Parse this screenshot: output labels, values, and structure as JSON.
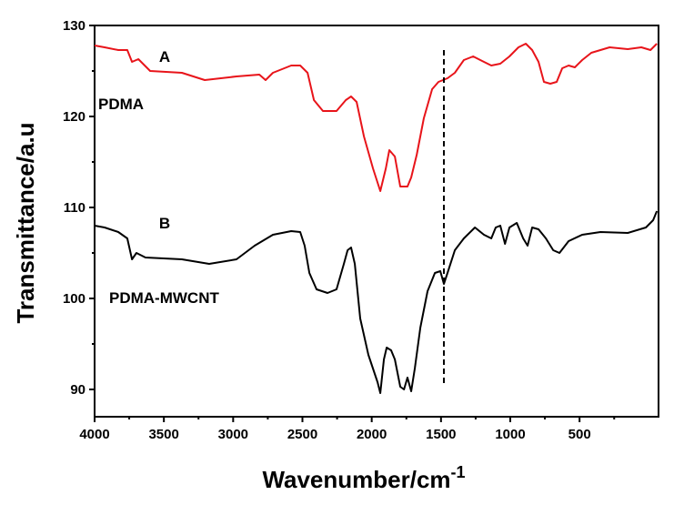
{
  "chart_data": {
    "type": "line",
    "xlabel": "Wavenumber/cm",
    "xlabel_sup": "-1",
    "ylabel": "Transmittance/a.u",
    "xlim": [
      4000,
      -70
    ],
    "ylim": [
      87,
      130
    ],
    "xticks": [
      4000,
      3500,
      3000,
      2500,
      2000,
      1500,
      1000,
      500
    ],
    "xminor": [
      3750,
      3250,
      2750,
      2250,
      1750,
      1250,
      750,
      250
    ],
    "yticks": [
      90,
      100,
      110,
      120,
      130
    ],
    "yminor": [
      95,
      105,
      115,
      125
    ],
    "annotations": [
      "A",
      "PDMA",
      "B",
      "PDMA-MWCNT"
    ],
    "vlines": [
      {
        "x": 1479,
        "ymin": 90.3,
        "ymax": 127.3
      }
    ],
    "series": [
      {
        "name": "PDMA",
        "color": "#e8141a",
        "x": [
          4000,
          3928,
          3829,
          3764,
          3730,
          3684,
          3599,
          3370,
          3205,
          2976,
          2811,
          2766,
          2713,
          2581,
          2516,
          2463,
          2417,
          2352,
          2254,
          2187,
          2149,
          2109,
          2056,
          1991,
          1938,
          1898,
          1873,
          1833,
          1794,
          1742,
          1715,
          1675,
          1624,
          1564,
          1518,
          1453,
          1400,
          1335,
          1268,
          1190,
          1137,
          1072,
          1006,
          941,
          888,
          842,
          796,
          757,
          711,
          665,
          625,
          579,
          534,
          481,
          415,
          283,
          152,
          54,
          -12,
          -58
        ],
        "values": [
          127.8,
          127.6,
          127.3,
          127.3,
          126.0,
          126.3,
          125.0,
          124.8,
          124.0,
          124.4,
          124.6,
          124.0,
          124.8,
          125.6,
          125.6,
          124.8,
          121.8,
          120.6,
          120.6,
          121.8,
          122.2,
          121.6,
          117.8,
          114.3,
          111.8,
          114.3,
          116.3,
          115.6,
          112.3,
          112.3,
          113.3,
          115.8,
          119.8,
          123.0,
          123.8,
          124.2,
          124.8,
          126.2,
          126.6,
          126.0,
          125.6,
          125.8,
          126.6,
          127.6,
          128.0,
          127.3,
          126.0,
          123.8,
          123.6,
          123.8,
          125.3,
          125.6,
          125.4,
          126.2,
          127.0,
          127.6,
          127.4,
          127.6,
          127.3,
          128.0
        ]
      },
      {
        "name": "PDMA-MWCNT",
        "color": "#000000",
        "x": [
          4000,
          3928,
          3829,
          3764,
          3730,
          3698,
          3633,
          3370,
          3173,
          2976,
          2845,
          2713,
          2581,
          2516,
          2484,
          2450,
          2398,
          2319,
          2254,
          2201,
          2174,
          2149,
          2122,
          2083,
          2024,
          1958,
          1938,
          1912,
          1892,
          1860,
          1833,
          1794,
          1767,
          1742,
          1715,
          1689,
          1649,
          1597,
          1544,
          1505,
          1479,
          1453,
          1400,
          1335,
          1255,
          1190,
          1137,
          1105,
          1072,
          1038,
          1006,
          953,
          907,
          875,
          842,
          796,
          743,
          690,
          645,
          579,
          481,
          349,
          152,
          21,
          -31,
          -58
        ],
        "values": [
          108.0,
          107.8,
          107.3,
          106.6,
          104.3,
          105.0,
          104.5,
          104.3,
          103.8,
          104.3,
          105.8,
          107.0,
          107.4,
          107.3,
          105.8,
          102.8,
          101.0,
          100.6,
          101.0,
          103.8,
          105.3,
          105.6,
          103.8,
          97.8,
          93.8,
          90.8,
          89.6,
          93.3,
          94.6,
          94.3,
          93.3,
          90.3,
          90.0,
          91.3,
          89.8,
          92.3,
          96.8,
          100.8,
          102.8,
          103.0,
          101.6,
          102.8,
          105.3,
          106.6,
          107.8,
          107.0,
          106.6,
          107.8,
          108.0,
          106.0,
          107.8,
          108.3,
          106.6,
          105.8,
          107.8,
          107.6,
          106.6,
          105.3,
          105.0,
          106.3,
          107.0,
          107.3,
          107.2,
          107.8,
          108.6,
          109.6
        ]
      }
    ]
  }
}
